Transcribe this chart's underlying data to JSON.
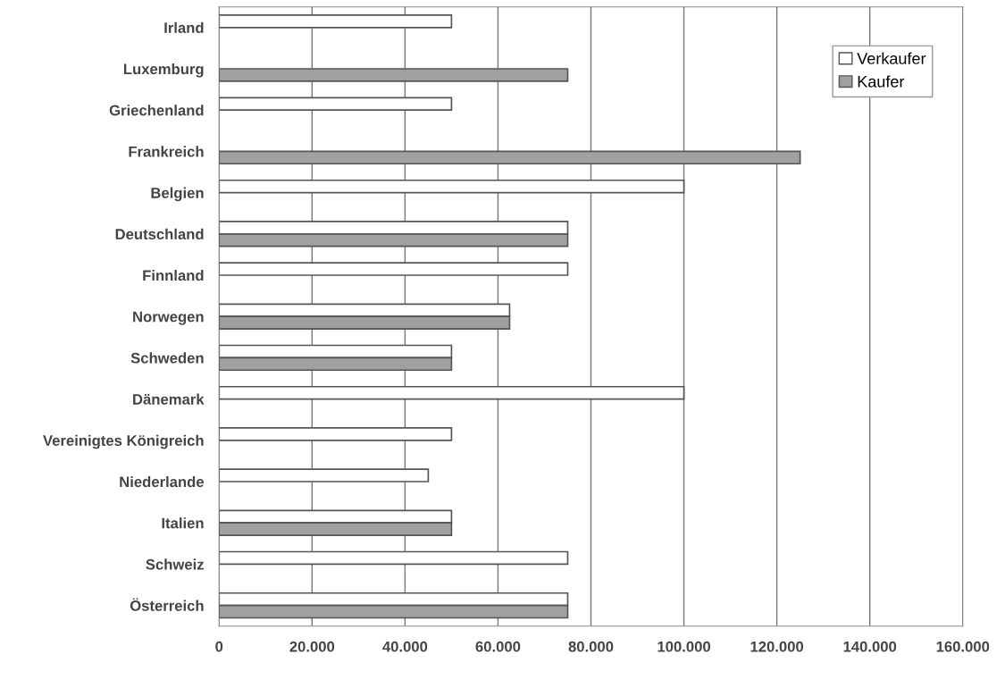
{
  "chart_data": {
    "type": "bar",
    "orientation": "horizontal",
    "categories": [
      "Irland",
      "Luxemburg",
      "Griechenland",
      "Frankreich",
      "Belgien",
      "Deutschland",
      "Finnland",
      "Norwegen",
      "Schweden",
      "Dänemark",
      "Vereinigtes Königreich",
      "Niederlande",
      "Italien",
      "Schweiz",
      "Österreich"
    ],
    "series": [
      {
        "name": "Verkaufer",
        "color": "#ffffff",
        "values": [
          50000,
          null,
          50000,
          null,
          100000,
          75000,
          75000,
          62500,
          50000,
          100000,
          50000,
          45000,
          50000,
          75000,
          75000
        ]
      },
      {
        "name": "Kaufer",
        "color": "#a0a0a0",
        "values": [
          null,
          75000,
          null,
          125000,
          null,
          75000,
          null,
          62500,
          50000,
          null,
          null,
          null,
          50000,
          null,
          75000
        ]
      }
    ],
    "xlim": [
      0,
      160000
    ],
    "xticks": [
      {
        "value": 0,
        "label": "0"
      },
      {
        "value": 20000,
        "label": "20.000"
      },
      {
        "value": 40000,
        "label": "40.000"
      },
      {
        "value": 60000,
        "label": "60.000"
      },
      {
        "value": 80000,
        "label": "80.000"
      },
      {
        "value": 100000,
        "label": "100.000"
      },
      {
        "value": 120000,
        "label": "120.000"
      },
      {
        "value": 140000,
        "label": "140.000"
      },
      {
        "value": 160000,
        "label": "160.000"
      }
    ],
    "grid": "x",
    "legend": "top right"
  }
}
